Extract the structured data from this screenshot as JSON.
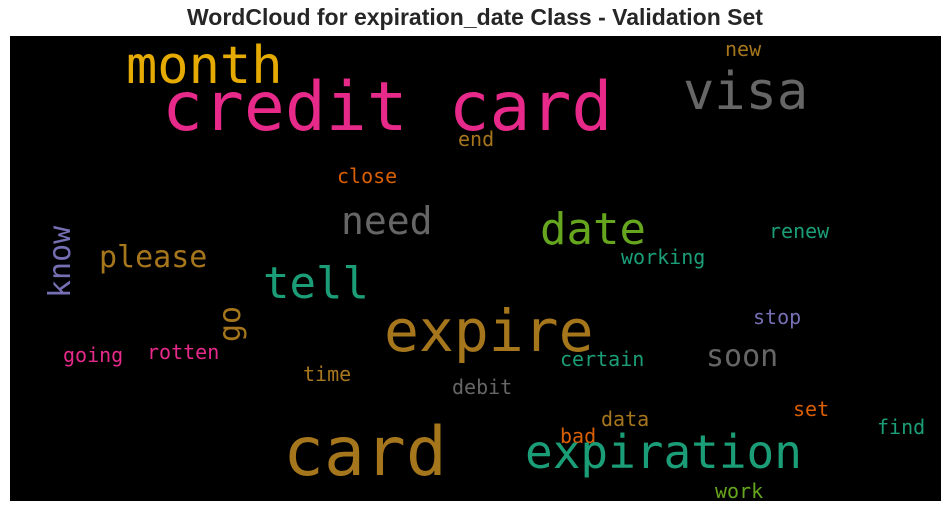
{
  "title": "WordCloud for expiration_date Class - Validation Set",
  "words": [
    {
      "text": "credit card",
      "color": "#e7298a"
    },
    {
      "text": "month",
      "color": "#e6ab02"
    },
    {
      "text": "visa",
      "color": "#666666"
    },
    {
      "text": "new",
      "color": "#a6761d"
    },
    {
      "text": "end",
      "color": "#a6761d"
    },
    {
      "text": "close",
      "color": "#d95f02"
    },
    {
      "text": "need",
      "color": "#666666"
    },
    {
      "text": "date",
      "color": "#66a61e"
    },
    {
      "text": "renew",
      "color": "#1b9e77"
    },
    {
      "text": "know",
      "color": "#7570b3"
    },
    {
      "text": "please",
      "color": "#a6761d"
    },
    {
      "text": "tell",
      "color": "#1b9e77"
    },
    {
      "text": "working",
      "color": "#1b9e77"
    },
    {
      "text": "go",
      "color": "#a6761d"
    },
    {
      "text": "expire",
      "color": "#a6761d"
    },
    {
      "text": "stop",
      "color": "#7570b3"
    },
    {
      "text": "going",
      "color": "#e7298a"
    },
    {
      "text": "rotten",
      "color": "#e7298a"
    },
    {
      "text": "soon",
      "color": "#666666"
    },
    {
      "text": "certain",
      "color": "#1b9e77"
    },
    {
      "text": "time",
      "color": "#a6761d"
    },
    {
      "text": "debit",
      "color": "#666666"
    },
    {
      "text": "set",
      "color": "#d95f02"
    },
    {
      "text": "data",
      "color": "#a6761d"
    },
    {
      "text": "find",
      "color": "#1b9e77"
    },
    {
      "text": "bad",
      "color": "#d95f02"
    },
    {
      "text": "card",
      "color": "#a6761d"
    },
    {
      "text": "expiration",
      "color": "#1b9e77"
    },
    {
      "text": "work",
      "color": "#66a61e"
    }
  ]
}
